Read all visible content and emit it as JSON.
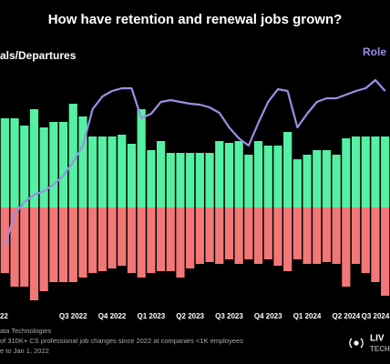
{
  "chart_data": {
    "type": "bar",
    "title": "How have retention and renewal jobs grown?",
    "left_label": "als/Departures",
    "right_label": "Role",
    "categories": [
      "22",
      null,
      null,
      null,
      null,
      null,
      null,
      "Q3 2022",
      null,
      null,
      null,
      "Q4 2022",
      null,
      null,
      null,
      "Q1 2023",
      null,
      null,
      null,
      "Q2 2023",
      null,
      null,
      null,
      "Q3 2023",
      null,
      null,
      null,
      "Q4 2023",
      null,
      null,
      null,
      "Q1 2024",
      null,
      null,
      null,
      "Q2 2024",
      null,
      null,
      "Q3 2024",
      null
    ],
    "series": [
      {
        "color": "#55f0a3",
        "values": [
          98,
          98,
          90,
          108,
          88,
          94,
          94,
          114,
          100,
          78,
          78,
          78,
          80,
          70,
          108,
          63,
          73,
          60,
          60,
          60,
          60,
          60,
          73,
          71,
          73,
          58,
          73,
          68,
          68,
          83,
          53,
          58,
          63,
          63,
          58,
          76,
          78,
          78,
          78,
          78
        ]
      },
      {
        "color": "#f27878",
        "values": [
          -72,
          -87,
          -87,
          -102,
          -92,
          -82,
          -82,
          -82,
          -77,
          -72,
          -70,
          -67,
          -64,
          -72,
          -77,
          -72,
          -70,
          -70,
          -77,
          -67,
          -62,
          -60,
          -62,
          -57,
          -62,
          -57,
          -62,
          -57,
          -64,
          -70,
          -57,
          -62,
          -62,
          -60,
          -62,
          -87,
          -62,
          -72,
          -82,
          -97
        ]
      },
      {
        "type": "line",
        "axis": "y2",
        "color": "#9b8fe3",
        "values": [
          -42,
          -7,
          6,
          14,
          18,
          25,
          35,
          50,
          68,
          108,
          122,
          128,
          131,
          131,
          98,
          103,
          116,
          118,
          116,
          114,
          113,
          110,
          104,
          88,
          76,
          68,
          93,
          116,
          130,
          128,
          88,
          103,
          116,
          120,
          120,
          124,
          128,
          131,
          140,
          128
        ]
      }
    ],
    "ylim": [
      -120,
      170
    ],
    "y2lim": [
      -120,
      170
    ],
    "footer": [
      "ata Technologies",
      "of 310K+ CS professional job changes since 2022 at companies <1K employees",
      "e to Jan 1, 2022"
    ],
    "logo": [
      "LIV",
      "TECH"
    ]
  }
}
